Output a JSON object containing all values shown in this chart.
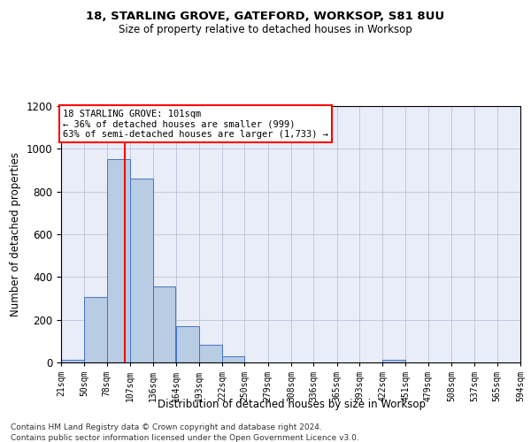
{
  "title_line1": "18, STARLING GROVE, GATEFORD, WORKSOP, S81 8UU",
  "title_line2": "Size of property relative to detached houses in Worksop",
  "xlabel": "Distribution of detached houses by size in Worksop",
  "ylabel": "Number of detached properties",
  "footer_line1": "Contains HM Land Registry data © Crown copyright and database right 2024.",
  "footer_line2": "Contains public sector information licensed under the Open Government Licence v3.0.",
  "annotation_line1": "18 STARLING GROVE: 101sqm",
  "annotation_line2": "← 36% of detached houses are smaller (999)",
  "annotation_line3": "63% of semi-detached houses are larger (1,733) →",
  "bar_color": "#b8cce4",
  "bar_edge_color": "#4472c4",
  "red_line_x": 101,
  "bin_edges": [
    21,
    50,
    78,
    107,
    136,
    164,
    193,
    222,
    250,
    279,
    308,
    336,
    365,
    393,
    422,
    451,
    479,
    508,
    537,
    565,
    594
  ],
  "bar_heights": [
    13,
    305,
    950,
    862,
    357,
    170,
    83,
    30,
    0,
    0,
    0,
    0,
    0,
    0,
    12,
    0,
    0,
    0,
    0,
    0
  ],
  "ylim": [
    0,
    1200
  ],
  "yticks": [
    0,
    200,
    400,
    600,
    800,
    1000,
    1200
  ],
  "background_color": "#e8edf8",
  "grid_color": "#b0b8d0",
  "figsize": [
    6.0,
    5.0
  ],
  "dpi": 100
}
